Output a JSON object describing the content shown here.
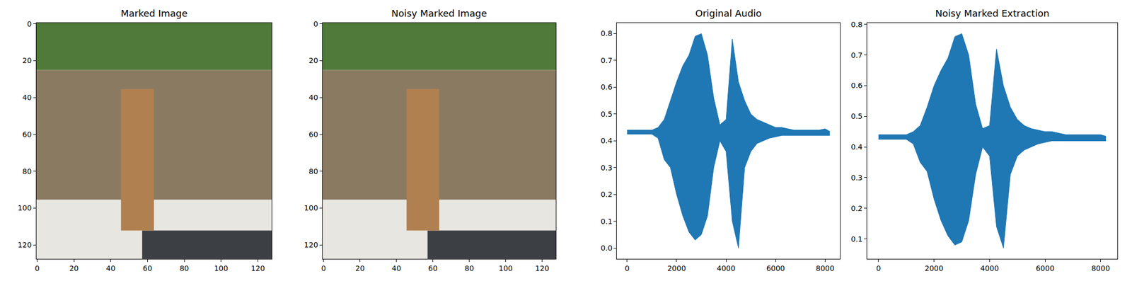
{
  "chart_data": [
    {
      "type": "image",
      "title": "Marked Image",
      "xlim": [
        -0.5,
        127.5
      ],
      "ylim": [
        127.5,
        -0.5
      ],
      "xticks": [
        0,
        20,
        40,
        60,
        80,
        100,
        120
      ],
      "yticks": [
        0,
        20,
        40,
        60,
        80,
        100,
        120
      ]
    },
    {
      "type": "image",
      "title": "Noisy Marked Image",
      "xlim": [
        -0.5,
        127.5
      ],
      "ylim": [
        127.5,
        -0.5
      ],
      "xticks": [
        0,
        20,
        40,
        60,
        80,
        100,
        120
      ],
      "yticks": [
        0,
        20,
        40,
        60,
        80,
        100,
        120
      ]
    },
    {
      "type": "area",
      "title": "Original Audio",
      "x": [
        0,
        250,
        500,
        750,
        1000,
        1250,
        1500,
        1750,
        2000,
        2250,
        2500,
        2750,
        3000,
        3250,
        3500,
        3750,
        4000,
        4250,
        4500,
        4750,
        5000,
        5250,
        5500,
        5750,
        6000,
        6250,
        6500,
        6750,
        7000,
        7250,
        7500,
        7750,
        8000,
        8192
      ],
      "series": [
        {
          "color": "#1f77b4",
          "values": [
            0.425,
            0.425,
            0.425,
            0.425,
            0.425,
            0.41,
            0.33,
            0.3,
            0.2,
            0.12,
            0.06,
            0.03,
            0.05,
            0.12,
            0.3,
            0.4,
            0.36,
            0.1,
            0.0,
            0.3,
            0.36,
            0.39,
            0.4,
            0.41,
            0.415,
            0.42,
            0.42,
            0.42,
            0.42,
            0.42,
            0.42,
            0.42,
            0.42,
            0.42
          ]
        },
        {
          "color": "#1f77b4",
          "values": [
            0.44,
            0.44,
            0.44,
            0.44,
            0.44,
            0.45,
            0.48,
            0.55,
            0.62,
            0.68,
            0.72,
            0.79,
            0.8,
            0.72,
            0.56,
            0.46,
            0.48,
            0.78,
            0.62,
            0.55,
            0.5,
            0.48,
            0.47,
            0.46,
            0.45,
            0.45,
            0.445,
            0.44,
            0.44,
            0.44,
            0.44,
            0.44,
            0.445,
            0.435
          ]
        }
      ],
      "xlim": [
        -410,
        8600
      ],
      "ylim": [
        -0.04,
        0.84
      ],
      "xticks": [
        0,
        2000,
        4000,
        6000,
        8000
      ],
      "yticks": [
        {
          "value": 0,
          "label": "0.0"
        },
        0.1,
        0.2,
        0.3,
        0.4,
        0.5,
        0.6,
        0.7,
        0.8
      ]
    },
    {
      "type": "area",
      "title": "Noisy Marked Extraction",
      "x": [
        0,
        250,
        500,
        750,
        1000,
        1250,
        1500,
        1750,
        2000,
        2250,
        2500,
        2750,
        3000,
        3250,
        3500,
        3750,
        4000,
        4250,
        4500,
        4750,
        5000,
        5250,
        5500,
        5750,
        6000,
        6250,
        6500,
        6750,
        7000,
        7250,
        7500,
        7750,
        8000,
        8192
      ],
      "series": [
        {
          "color": "#1f77b4",
          "values": [
            0.425,
            0.425,
            0.425,
            0.425,
            0.425,
            0.41,
            0.35,
            0.32,
            0.23,
            0.16,
            0.11,
            0.08,
            0.09,
            0.16,
            0.31,
            0.4,
            0.37,
            0.14,
            0.07,
            0.31,
            0.37,
            0.39,
            0.4,
            0.41,
            0.415,
            0.42,
            0.42,
            0.42,
            0.42,
            0.42,
            0.42,
            0.42,
            0.42,
            0.42
          ]
        },
        {
          "color": "#1f77b4",
          "values": [
            0.44,
            0.44,
            0.44,
            0.44,
            0.44,
            0.45,
            0.47,
            0.53,
            0.6,
            0.65,
            0.69,
            0.76,
            0.77,
            0.7,
            0.54,
            0.46,
            0.47,
            0.72,
            0.6,
            0.53,
            0.49,
            0.47,
            0.46,
            0.455,
            0.45,
            0.45,
            0.445,
            0.44,
            0.44,
            0.44,
            0.44,
            0.44,
            0.44,
            0.435
          ]
        }
      ],
      "xlim": [
        -410,
        8600
      ],
      "ylim": [
        0.035,
        0.805
      ],
      "xticks": [
        0,
        2000,
        4000,
        6000,
        8000
      ],
      "yticks": [
        0.1,
        0.2,
        0.3,
        0.4,
        0.5,
        0.6,
        0.7,
        0.8
      ]
    }
  ]
}
